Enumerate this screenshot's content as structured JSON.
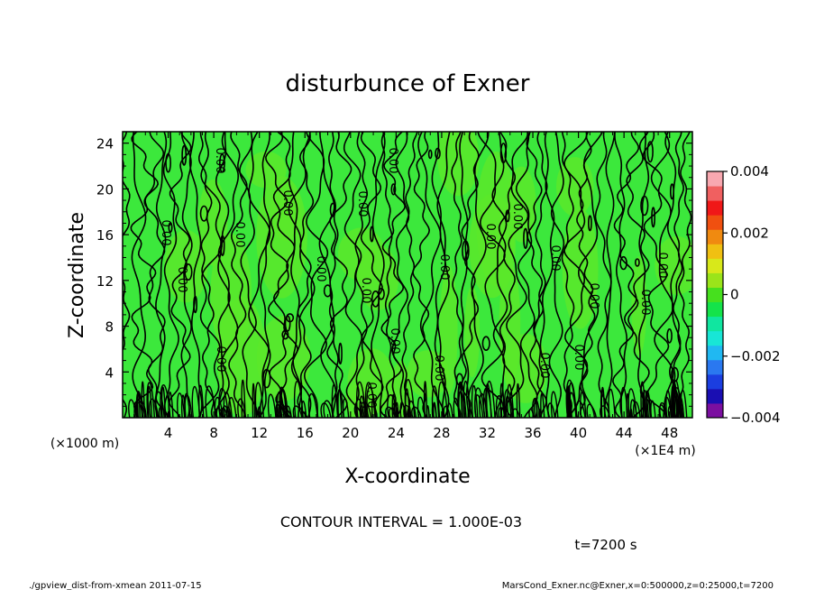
{
  "chart_data": {
    "type": "contour",
    "title": "disturbunce of Exner",
    "xlabel": "X-coordinate",
    "ylabel": "Z-coordinate",
    "x_unit": "(×1E4 m)",
    "y_unit": "(×1000 m)",
    "xlim": [
      0,
      50
    ],
    "ylim": [
      0,
      25
    ],
    "x_ticks": [
      4,
      8,
      12,
      16,
      20,
      24,
      28,
      32,
      36,
      40,
      44,
      48
    ],
    "x_tick_labels": [
      "4",
      "8",
      "12",
      "16",
      "20",
      "24",
      "28",
      "32",
      "36",
      "40",
      "44",
      "48"
    ],
    "y_ticks": [
      4,
      8,
      12,
      16,
      20,
      24
    ],
    "y_tick_labels": [
      "4",
      "8",
      "12",
      "16",
      "20",
      "24"
    ],
    "contour_interval_text": "CONTOUR INTERVAL = 1.000E-03",
    "contour_label": "0.00",
    "contour_levels": [
      -0.001,
      0,
      0.001
    ],
    "time_text": "t=7200 s",
    "colorbar": {
      "min": -0.004,
      "max": 0.004,
      "tick_values": [
        0.004,
        0.002,
        0,
        -0.002,
        -0.004
      ],
      "tick_labels": [
        "0.004",
        "0.002",
        "0",
        "−0.002",
        "−0.004"
      ],
      "colors": [
        "#7b0fa0",
        "#1a0eb2",
        "#1b3ee0",
        "#2a78f0",
        "#20b8f2",
        "#18e6d6",
        "#10e6a0",
        "#14e34a",
        "#46e01e",
        "#9ae41a",
        "#d8e81a",
        "#f0c012",
        "#f08a10",
        "#f05010",
        "#f01818",
        "#f06060",
        "#f8a8b0"
      ]
    },
    "field_dominant_color": "#3ce83c",
    "field_secondary_color": "#5ae82a"
  },
  "footer": {
    "left": "./gpview_dist-from-xmean  2011-07-15",
    "right": "MarsCond_Exner.nc@Exner,x=0:500000,z=0:25000,t=7200"
  }
}
